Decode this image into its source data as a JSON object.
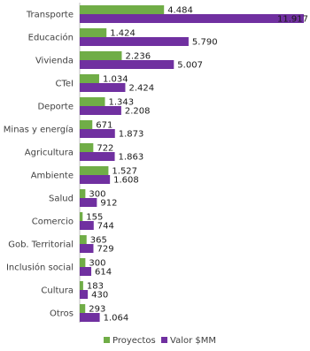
{
  "chart_data": {
    "type": "bar",
    "orientation": "horizontal",
    "categories": [
      "Transporte",
      "Educación",
      "Vivienda",
      "CTeI",
      "Deporte",
      "Minas y energía",
      "Agricultura",
      "Ambiente",
      "Salud",
      "Comercio",
      "Gob. Territorial",
      "Inclusión social",
      "Cultura",
      "Otros"
    ],
    "series": [
      {
        "name": "Proyectos",
        "color": "#70AD47",
        "values": [
          4484,
          1424,
          2236,
          1034,
          1343,
          671,
          722,
          1527,
          300,
          155,
          365,
          300,
          183,
          293
        ],
        "labels": [
          "4.484",
          "1.424",
          "2.236",
          "1.034",
          "1.343",
          "671",
          "722",
          "1.527",
          "300",
          "155",
          "365",
          "300",
          "183",
          "293"
        ]
      },
      {
        "name": "Valor $MM",
        "color": "#7030A0",
        "values": [
          11917,
          5790,
          5007,
          2424,
          2208,
          1873,
          1863,
          1608,
          912,
          744,
          729,
          614,
          430,
          1064
        ],
        "labels": [
          "11.917",
          "5.790",
          "5.007",
          "2.424",
          "2.208",
          "1.873",
          "1.863",
          "1.608",
          "912",
          "744",
          "729",
          "614",
          "430",
          "1.064"
        ]
      }
    ],
    "xlim": [
      0,
      11917
    ],
    "grid": false,
    "legend_position": "bottom"
  }
}
